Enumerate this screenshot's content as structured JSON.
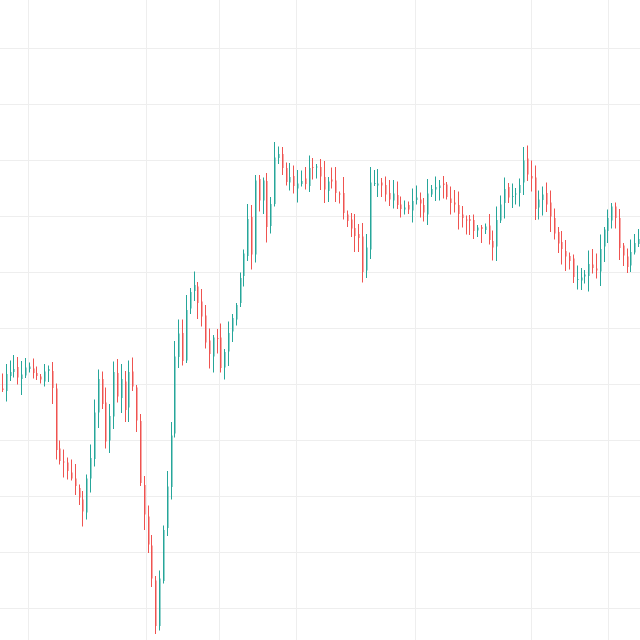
{
  "chart_data": {
    "type": "candlestick",
    "title": "",
    "xlabel": "",
    "ylabel": "",
    "grid": true,
    "axes_labels_visible": false,
    "ylim": [
      0,
      100
    ],
    "series_count": 1,
    "colors": {
      "background": "#ffffff",
      "grid": "#eeeeee",
      "up": "#26a69a",
      "down": "#ef5350"
    },
    "grid_lines": {
      "vertical": [
        4.4,
        22.8,
        34.2,
        46.3,
        64.8,
        83.0,
        95.0
      ],
      "horizontal": [
        7.5,
        16.2,
        25.0,
        33.8,
        42.5,
        51.2,
        60.0,
        68.8,
        77.5,
        86.2,
        95.0
      ]
    },
    "close_path": [
      [
        0,
        60.5
      ],
      [
        2,
        57.5
      ],
      [
        4,
        58.5
      ],
      [
        6,
        57
      ],
      [
        8,
        58.5
      ],
      [
        10,
        59.5
      ],
      [
        12,
        58
      ],
      [
        13,
        61
      ],
      [
        14,
        71
      ],
      [
        16,
        72.5
      ],
      [
        18,
        74
      ],
      [
        20,
        77
      ],
      [
        21,
        80
      ],
      [
        22,
        75
      ],
      [
        23,
        72
      ],
      [
        24,
        64
      ],
      [
        25,
        59.5
      ],
      [
        26,
        63
      ],
      [
        27,
        69.5
      ],
      [
        28,
        65
      ],
      [
        29,
        58.5
      ],
      [
        30,
        62
      ],
      [
        31,
        60
      ],
      [
        32,
        64.5
      ],
      [
        33,
        57.5
      ],
      [
        34,
        60
      ],
      [
        35,
        65
      ],
      [
        36,
        75
      ],
      [
        37,
        80
      ],
      [
        38,
        85
      ],
      [
        39,
        90
      ],
      [
        40,
        98
      ],
      [
        42,
        83
      ],
      [
        44,
        68
      ],
      [
        45,
        55
      ],
      [
        46,
        52
      ],
      [
        47,
        56
      ],
      [
        48,
        48.5
      ],
      [
        50,
        44
      ],
      [
        51,
        47
      ],
      [
        52,
        49
      ],
      [
        53,
        53
      ],
      [
        54,
        55
      ],
      [
        55,
        52
      ],
      [
        56,
        52.5
      ],
      [
        57,
        58
      ],
      [
        59,
        52
      ],
      [
        61,
        48
      ],
      [
        62,
        44
      ],
      [
        63,
        39
      ],
      [
        64,
        33.5
      ],
      [
        65,
        40
      ],
      [
        66,
        27.5
      ],
      [
        67,
        32
      ],
      [
        68,
        27.5
      ],
      [
        69,
        35
      ],
      [
        70,
        32
      ],
      [
        71,
        25
      ],
      [
        72,
        24.5
      ],
      [
        73,
        26.5
      ],
      [
        74,
        28
      ],
      [
        75,
        27.5
      ],
      [
        76,
        29
      ],
      [
        77,
        28
      ],
      [
        78,
        27.5
      ],
      [
        79,
        28
      ],
      [
        80,
        27
      ],
      [
        82,
        26.5
      ],
      [
        84,
        30
      ],
      [
        86,
        28
      ],
      [
        88,
        31
      ],
      [
        90,
        34
      ],
      [
        92,
        37
      ],
      [
        93,
        38
      ],
      [
        94,
        42
      ],
      [
        95,
        38
      ],
      [
        96,
        29
      ],
      [
        98,
        28.5
      ],
      [
        100,
        30
      ],
      [
        102,
        31
      ],
      [
        104,
        33
      ],
      [
        106,
        32
      ],
      [
        108,
        31
      ],
      [
        110,
        33
      ],
      [
        112,
        29
      ],
      [
        114,
        28.5
      ],
      [
        116,
        30
      ],
      [
        118,
        32
      ],
      [
        120,
        34
      ],
      [
        122,
        35
      ],
      [
        124,
        36
      ],
      [
        126,
        35.5
      ],
      [
        128,
        38
      ],
      [
        130,
        32
      ],
      [
        131,
        30
      ],
      [
        132,
        31
      ],
      [
        134,
        30
      ],
      [
        135,
        29
      ],
      [
        136,
        25
      ],
      [
        137,
        27.5
      ],
      [
        138,
        28
      ],
      [
        139,
        32
      ],
      [
        141,
        31
      ],
      [
        143,
        34
      ],
      [
        145,
        38
      ],
      [
        147,
        40
      ],
      [
        149,
        43
      ],
      [
        151,
        43.5
      ],
      [
        153,
        41
      ],
      [
        155,
        41.5
      ],
      [
        157,
        36
      ],
      [
        159,
        32.5
      ],
      [
        160,
        34
      ],
      [
        161,
        38
      ],
      [
        162,
        40
      ],
      [
        163,
        41
      ],
      [
        164,
        39
      ],
      [
        165,
        38
      ],
      [
        166,
        37
      ]
    ]
  }
}
